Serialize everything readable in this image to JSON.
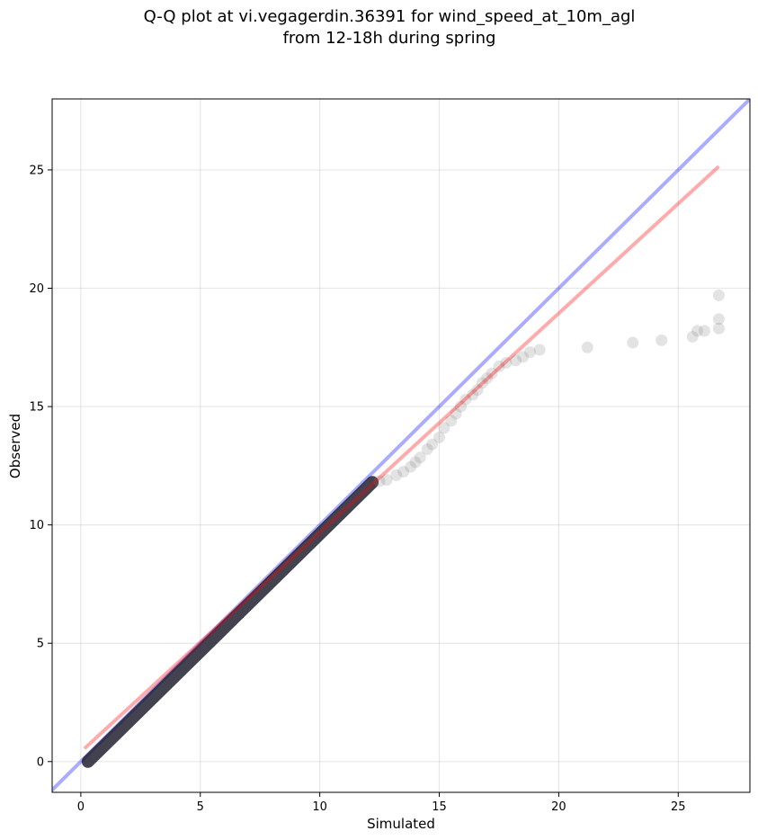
{
  "chart_data": {
    "type": "scatter",
    "title_line1": "Q-Q plot at vi.vegagerdin.36391 for wind_speed_at_10m_agl",
    "title_line2": "from 12-18h during spring",
    "xlabel": "Simulated",
    "ylabel": "Observed",
    "xlim": [
      -1.2,
      28.0
    ],
    "ylim": [
      -1.3,
      28.0
    ],
    "xticks": [
      0,
      5,
      10,
      15,
      20,
      25
    ],
    "yticks": [
      0,
      5,
      10,
      15,
      20,
      25
    ],
    "grid": true,
    "identity_line": {
      "color": "#0000ff",
      "opacity": 0.33
    },
    "fit_line": {
      "color": "#ff0000",
      "opacity": 0.33,
      "x": [
        0.15,
        26.7
      ],
      "y": [
        0.55,
        25.15
      ]
    },
    "dense_segments": [
      {
        "x": [
          0.3,
          12.2
        ],
        "y": [
          0.0,
          11.8
        ]
      }
    ],
    "series": [
      {
        "marker_color": "#808080",
        "points": [
          [
            12.5,
            11.85
          ],
          [
            12.8,
            11.9
          ],
          [
            13.2,
            12.1
          ],
          [
            13.5,
            12.25
          ],
          [
            13.8,
            12.45
          ],
          [
            14.0,
            12.65
          ],
          [
            14.2,
            12.85
          ],
          [
            14.5,
            13.2
          ],
          [
            14.7,
            13.4
          ],
          [
            15.0,
            13.7
          ],
          [
            15.2,
            14.1
          ],
          [
            15.5,
            14.4
          ],
          [
            15.7,
            14.7
          ],
          [
            15.9,
            15.0
          ],
          [
            16.1,
            15.3
          ],
          [
            16.4,
            15.5
          ],
          [
            16.6,
            15.7
          ],
          [
            16.8,
            16.0
          ],
          [
            17.0,
            16.2
          ],
          [
            17.2,
            16.4
          ],
          [
            17.5,
            16.7
          ],
          [
            17.8,
            16.85
          ],
          [
            18.2,
            16.95
          ],
          [
            18.5,
            17.1
          ],
          [
            18.8,
            17.3
          ],
          [
            19.2,
            17.4
          ],
          [
            21.2,
            17.5
          ],
          [
            23.1,
            17.7
          ],
          [
            24.3,
            17.8
          ],
          [
            25.6,
            17.95
          ],
          [
            25.8,
            18.2
          ],
          [
            26.1,
            18.2
          ],
          [
            26.7,
            18.3
          ],
          [
            26.7,
            18.7
          ],
          [
            26.7,
            19.7
          ]
        ]
      }
    ]
  }
}
